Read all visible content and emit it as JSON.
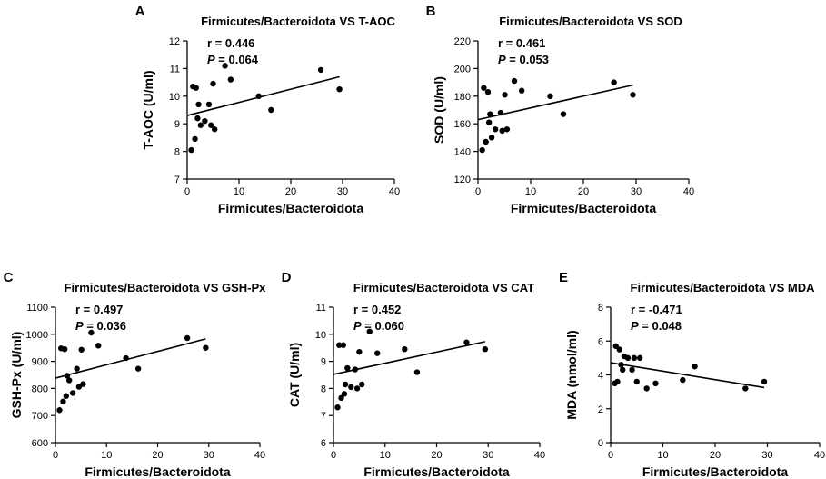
{
  "chart_data": [
    {
      "panel": "A",
      "type": "scatter",
      "title": "Firmicutes/Bacteroidota VS T-AOC",
      "xlabel": "Firmicutes/Bacteroidota",
      "ylabel": "T-AOC (U/ml)",
      "xlim": [
        0,
        40
      ],
      "ylim": [
        7,
        12
      ],
      "xticks": [
        "0",
        "10",
        "20",
        "30",
        "40"
      ],
      "yticks": [
        "7",
        "8",
        "9",
        "10",
        "11",
        "12"
      ],
      "stat_r": "r = 0.446",
      "stat_p_symbol": "P",
      "stat_p_value": " = 0.064",
      "x": [
        0.8,
        1.1,
        1.5,
        1.7,
        2.0,
        2.2,
        2.6,
        3.4,
        4.2,
        4.6,
        5.0,
        5.3,
        7.3,
        8.4,
        13.8,
        16.2,
        25.8,
        29.4
      ],
      "y": [
        8.05,
        10.35,
        8.45,
        10.3,
        9.2,
        9.7,
        8.95,
        9.1,
        9.7,
        8.95,
        10.45,
        8.8,
        11.1,
        10.6,
        10.0,
        9.5,
        10.95,
        10.25
      ],
      "fit": {
        "x": [
          0,
          29.4
        ],
        "y": [
          9.3,
          10.7
        ]
      }
    },
    {
      "panel": "B",
      "type": "scatter",
      "title": "Firmicutes/Bacteroidota VS SOD",
      "xlabel": "Firmicutes/Bacteroidota",
      "ylabel": "SOD (U/ml)",
      "xlim": [
        0,
        40
      ],
      "ylim": [
        120,
        220
      ],
      "xticks": [
        "0",
        "10",
        "20",
        "30",
        "40"
      ],
      "yticks": [
        "120",
        "140",
        "160",
        "180",
        "200",
        "220"
      ],
      "stat_r": "r = 0.461",
      "stat_p_symbol": "P",
      "stat_p_value": " = 0.053",
      "x": [
        0.8,
        1.1,
        1.5,
        1.9,
        2.1,
        2.3,
        2.6,
        3.3,
        4.3,
        4.6,
        5.1,
        5.5,
        6.9,
        8.3,
        13.7,
        16.2,
        25.8,
        29.4
      ],
      "y": [
        141,
        186,
        147,
        183,
        161,
        167,
        150,
        156,
        168,
        155,
        181,
        156,
        191,
        184,
        180,
        167,
        190,
        181
      ],
      "fit": {
        "x": [
          0,
          29.4
        ],
        "y": [
          163,
          188
        ]
      }
    },
    {
      "panel": "C",
      "type": "scatter",
      "title": "Firmicutes/Bacteroidota VS GSH-Px",
      "xlabel": "Firmicutes/Bacteroidota",
      "ylabel": "GSH-Px (U/ml)",
      "xlim": [
        0,
        40
      ],
      "ylim": [
        600,
        1100
      ],
      "xticks": [
        "0",
        "10",
        "20",
        "30",
        "40"
      ],
      "yticks": [
        "600",
        "700",
        "800",
        "900",
        "1000",
        "1100"
      ],
      "stat_r": "r = 0.497",
      "stat_p_symbol": "P",
      "stat_p_value": " = 0.036",
      "x": [
        0.8,
        1.1,
        1.5,
        1.8,
        2.1,
        2.3,
        2.7,
        3.4,
        4.2,
        4.6,
        5.1,
        5.4,
        7.0,
        8.4,
        13.8,
        16.2,
        25.8,
        29.4
      ],
      "y": [
        720,
        948,
        752,
        945,
        772,
        847,
        830,
        783,
        873,
        806,
        943,
        816,
        1006,
        958,
        912,
        873,
        986,
        950
      ],
      "fit": {
        "x": [
          0,
          29.4
        ],
        "y": [
          838,
          983
        ]
      }
    },
    {
      "panel": "D",
      "type": "scatter",
      "title": "Firmicutes/Bacteroidota VS CAT",
      "xlabel": "Firmicutes/Bacteroidota",
      "ylabel": "CAT (U/ml)",
      "xlim": [
        0,
        40
      ],
      "ylim": [
        6,
        11
      ],
      "xticks": [
        "0",
        "10",
        "20",
        "30",
        "40"
      ],
      "yticks": [
        "6",
        "7",
        "8",
        "9",
        "10",
        "11"
      ],
      "stat_r": "r = 0.452",
      "stat_p_symbol": "P",
      "stat_p_value": " = 0.060",
      "x": [
        0.8,
        1.1,
        1.5,
        1.9,
        2.1,
        2.3,
        2.7,
        3.4,
        4.2,
        4.6,
        5.0,
        5.5,
        7.0,
        8.5,
        13.8,
        16.2,
        25.8,
        29.4
      ],
      "y": [
        7.3,
        9.6,
        7.65,
        9.6,
        7.8,
        8.15,
        8.75,
        8.05,
        8.7,
        8.0,
        9.35,
        8.15,
        10.1,
        9.3,
        9.45,
        8.6,
        9.7,
        9.45
      ],
      "fit": {
        "x": [
          0,
          29.4
        ],
        "y": [
          8.52,
          9.73
        ]
      }
    },
    {
      "panel": "E",
      "type": "scatter",
      "title": "Firmicutes/Bacteroidota VS MDA",
      "xlabel": "Firmicutes/Bacteroidota",
      "ylabel": "MDA (nmol/ml)",
      "xlim": [
        0,
        40
      ],
      "ylim": [
        0,
        8
      ],
      "xticks": [
        "0",
        "10",
        "20",
        "30",
        "40"
      ],
      "yticks": [
        "0",
        "2",
        "4",
        "6",
        "8"
      ],
      "stat_r": "r = -0.471",
      "stat_p_symbol": "P",
      "stat_p_value": " = 0.048",
      "x": [
        0.8,
        1.0,
        1.3,
        1.7,
        2.0,
        2.3,
        2.6,
        3.3,
        4.1,
        4.5,
        5.0,
        5.6,
        6.9,
        8.6,
        13.8,
        16.1,
        25.8,
        29.4
      ],
      "y": [
        3.5,
        5.7,
        3.6,
        5.5,
        4.6,
        4.3,
        5.1,
        5.0,
        4.3,
        5.0,
        3.6,
        5.0,
        3.2,
        3.5,
        3.7,
        4.5,
        3.2,
        3.6
      ],
      "fit": {
        "x": [
          0,
          29.4
        ],
        "y": [
          4.72,
          3.25
        ]
      }
    }
  ]
}
